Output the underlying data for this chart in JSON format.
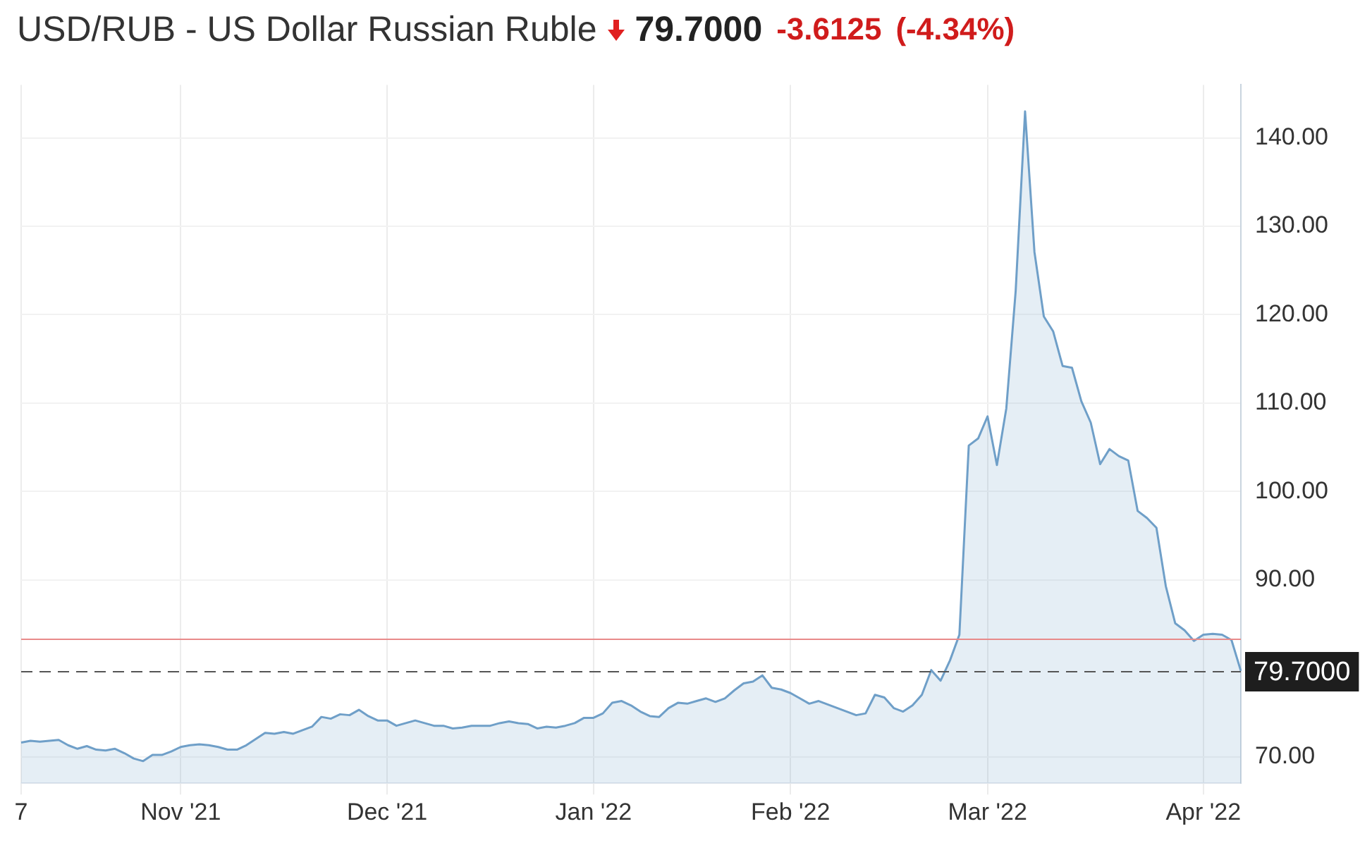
{
  "chart_data": {
    "type": "area",
    "title": "USD/RUB - US Dollar Russian Ruble",
    "annotations": [
      "79.7000",
      "-3.6125",
      "(-4.34%)"
    ],
    "categories": [
      "7",
      null,
      null,
      null,
      null,
      null,
      null,
      null,
      null,
      null,
      null,
      null,
      null,
      null,
      null,
      null,
      null,
      "Nov '21",
      null,
      null,
      null,
      null,
      null,
      null,
      null,
      null,
      null,
      null,
      null,
      null,
      null,
      null,
      null,
      null,
      null,
      null,
      null,
      null,
      null,
      "Dec '21",
      null,
      null,
      null,
      null,
      null,
      null,
      null,
      null,
      null,
      null,
      null,
      null,
      null,
      null,
      null,
      null,
      null,
      null,
      null,
      null,
      null,
      "Jan '22",
      null,
      null,
      null,
      null,
      null,
      null,
      null,
      null,
      null,
      null,
      null,
      null,
      null,
      null,
      null,
      null,
      null,
      null,
      null,
      null,
      "Feb '22",
      null,
      null,
      null,
      null,
      null,
      null,
      null,
      null,
      null,
      null,
      null,
      null,
      null,
      null,
      null,
      null,
      null,
      null,
      null,
      null,
      "Mar '22",
      null,
      null,
      null,
      null,
      null,
      null,
      null,
      null,
      null,
      null,
      null,
      null,
      null,
      null,
      null,
      null,
      null,
      null,
      null,
      null,
      null,
      null,
      "Apr '22",
      null,
      null,
      null,
      null
    ],
    "series": [
      {
        "color": "#6f9fc8",
        "values": [
          71.6,
          71.8,
          71.7,
          71.8,
          71.9,
          71.3,
          70.9,
          71.2,
          70.8,
          70.7,
          70.9,
          70.4,
          69.8,
          69.5,
          70.2,
          70.2,
          70.6,
          71.1,
          71.3,
          71.4,
          71.3,
          71.1,
          70.8,
          70.8,
          71.3,
          72.0,
          72.7,
          72.6,
          72.8,
          72.6,
          73.0,
          73.4,
          74.5,
          74.3,
          74.8,
          74.7,
          75.3,
          74.6,
          74.1,
          74.1,
          73.5,
          73.8,
          74.1,
          73.8,
          73.5,
          73.5,
          73.2,
          73.3,
          73.5,
          73.5,
          73.5,
          73.8,
          74.0,
          73.8,
          73.7,
          73.2,
          73.4,
          73.3,
          73.5,
          73.8,
          74.4,
          74.4,
          74.9,
          76.1,
          76.3,
          75.8,
          75.1,
          74.6,
          74.5,
          75.5,
          76.1,
          76.0,
          76.3,
          76.6,
          76.2,
          76.6,
          77.5,
          78.3,
          78.5,
          79.2,
          77.8,
          77.6,
          77.2,
          76.6,
          76.0,
          76.3,
          75.9,
          75.5,
          75.1,
          74.7,
          74.9,
          77.0,
          76.7,
          75.5,
          75.1,
          75.8,
          77.0,
          79.8,
          78.6,
          80.9,
          83.8,
          105.2,
          106.0,
          108.5,
          103.0,
          109.4,
          122.7,
          143.0,
          127.1,
          119.8,
          118.1,
          114.2,
          114.0,
          110.2,
          107.8,
          103.1,
          104.8,
          104.0,
          103.5,
          97.8,
          97.0,
          95.9,
          89.3,
          85.1,
          84.3,
          83.1,
          83.8,
          83.9,
          83.8,
          83.2,
          79.7
        ]
      }
    ],
    "ylim": [
      67,
      146
    ],
    "yticks": [
      {
        "value": 70,
        "label": "70.00"
      },
      {
        "value": 90,
        "label": "90.00"
      },
      {
        "value": 100,
        "label": "100.00"
      },
      {
        "value": 110,
        "label": "110.00"
      },
      {
        "value": 120,
        "label": "120.00"
      },
      {
        "value": 130,
        "label": "130.00"
      },
      {
        "value": 140,
        "label": "140.00"
      }
    ],
    "ref_lines": [
      {
        "axis": "y",
        "value": 83.3,
        "color": "#e88a8a"
      },
      {
        "axis": "y",
        "value": 79.7,
        "label": "79.7000",
        "color": "#555555",
        "line_style": "dashed"
      }
    ],
    "grid": true,
    "marker": "none"
  }
}
